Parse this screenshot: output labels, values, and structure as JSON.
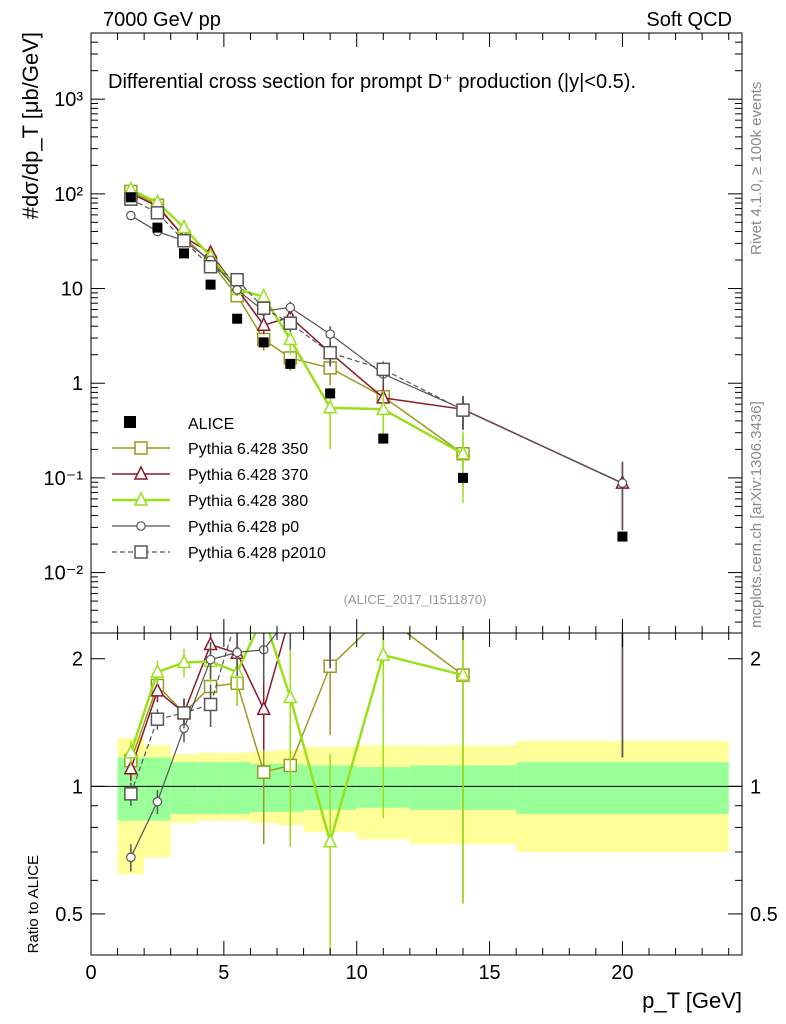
{
  "header": {
    "energy_label": "7000 GeV pp",
    "process_label": "Soft QCD"
  },
  "sidebar": {
    "rivet_label": "Rivet 4.1.0, ≥ 100k events",
    "site_label": "mcplots.cern.ch [arXiv:1306.3436]"
  },
  "colors": {
    "alice": "#000000",
    "p350": "#999a22",
    "p370": "#8b1a2a",
    "p380": "#99e01a",
    "p0": "#555555",
    "p2010": "#555555",
    "band_inner": "#99ff99",
    "band_outer": "#ffff99"
  },
  "chart_data": {
    "type": "scatter",
    "title": "Differential cross section for prompt D⁺ production (|y|<0.5).",
    "analysis_tag": "(ALICE_2017_I1511870)",
    "ylabel_top": "#dσ/dp_T [μb/GeV]",
    "ylabel_ratio": "Ratio to ALICE",
    "xlabel": "p_T [GeV]",
    "xlim": [
      0,
      24.5
    ],
    "ylim_top": [
      0.0023,
      5000
    ],
    "ylim_ratio": [
      0.4,
      2.3
    ],
    "x_ticks": [
      "0",
      "5",
      "10",
      "15",
      "20"
    ],
    "y_ticks_top": [
      "10⁻²",
      "10⁻¹",
      "1",
      "10",
      "10²",
      "10³"
    ],
    "y_ticks_ratio": [
      "0.5",
      "1",
      "2"
    ],
    "legend": [
      "ALICE",
      "Pythia 6.428 350",
      "Pythia 6.428 370",
      "Pythia 6.428 380",
      "Pythia 6.428 p0",
      "Pythia 6.428 p2010"
    ],
    "data": {
      "name": "ALICE",
      "x": [
        1.5,
        2.5,
        3.5,
        4.5,
        5.5,
        6.5,
        7.5,
        9.0,
        11.0,
        14.0,
        20.0
      ],
      "bins": [
        [
          1,
          2
        ],
        [
          2,
          3
        ],
        [
          3,
          4
        ],
        [
          4,
          5
        ],
        [
          5,
          6
        ],
        [
          6,
          7
        ],
        [
          7,
          8
        ],
        [
          8,
          10
        ],
        [
          10,
          12
        ],
        [
          12,
          16
        ],
        [
          16,
          24
        ]
      ],
      "values": [
        92,
        44,
        23.5,
        11,
        4.8,
        2.7,
        1.6,
        0.78,
        0.26,
        0.1,
        0.024
      ],
      "band_inner_frac": [
        0.17,
        0.17,
        0.14,
        0.14,
        0.14,
        0.13,
        0.13,
        0.12,
        0.11,
        0.12,
        0.14
      ],
      "band_outer_lo": [
        0.38,
        0.32,
        0.18,
        0.17,
        0.17,
        0.18,
        0.19,
        0.22,
        0.25,
        0.27,
        0.3
      ],
      "band_outer_hi": [
        0.3,
        0.25,
        0.19,
        0.2,
        0.2,
        0.21,
        0.22,
        0.24,
        0.25,
        0.25,
        0.28
      ]
    },
    "series": [
      {
        "name": "Pythia 6.428 350",
        "marker": "square",
        "x": [
          1.5,
          2.5,
          3.5,
          4.5,
          5.5,
          6.5,
          7.5,
          9.0,
          11.0,
          14.0
        ],
        "values": [
          106,
          76,
          35,
          19,
          8.4,
          2.9,
          1.85,
          1.45,
          0.72,
          0.18
        ],
        "errors": [
          8,
          5,
          3,
          2,
          1.2,
          0.7,
          0.5,
          0.5,
          0.3,
          0.1
        ]
      },
      {
        "name": "Pythia 6.428 370",
        "marker": "triangle",
        "x": [
          1.5,
          2.5,
          3.5,
          4.5,
          5.5,
          6.5,
          7.5,
          9.0,
          11.0,
          14.0,
          20.0
        ],
        "values": [
          101,
          74,
          35,
          23.8,
          9.9,
          4.1,
          5.0,
          2.1,
          0.7,
          0.53,
          0.088
        ],
        "errors": [
          8,
          5,
          3,
          2.4,
          1.2,
          0.8,
          1,
          0.6,
          0.4,
          0.2,
          0.06
        ]
      },
      {
        "name": "Pythia 6.428 380",
        "marker": "triangle",
        "x": [
          1.5,
          2.5,
          3.5,
          4.5,
          5.5,
          6.5,
          7.5,
          9.0,
          11.0,
          14.0
        ],
        "values": [
          111,
          81,
          44,
          21.8,
          9.8,
          8.2,
          2.9,
          0.55,
          0.53,
          0.18
        ],
        "errors": [
          8,
          6,
          4,
          2.5,
          1.5,
          1.4,
          0.9,
          0.35,
          0.3,
          0.13
        ]
      },
      {
        "name": "Pythia 6.428 p0",
        "marker": "circle",
        "x": [
          1.5,
          2.5,
          3.5,
          4.5,
          5.5,
          6.5,
          7.5,
          9.0,
          11.0,
          14.0,
          20.0
        ],
        "values": [
          59,
          40,
          32,
          19.9,
          9.7,
          5.8,
          6.3,
          3.3,
          1.25,
          0.53,
          0.088
        ],
        "errors": [
          4,
          3,
          2.5,
          2,
          1.2,
          0.9,
          1,
          0.7,
          0.3,
          0.2,
          0.06
        ]
      },
      {
        "name": "Pythia 6.428 p2010",
        "marker": "square",
        "dashed": true,
        "x": [
          1.5,
          2.5,
          3.5,
          4.5,
          5.5,
          6.5,
          7.5,
          9.0,
          11.0,
          14.0
        ],
        "values": [
          88,
          63,
          32,
          17,
          12.4,
          6.2,
          4.3,
          2.1,
          1.4,
          0.52
        ],
        "errors": [
          7,
          5,
          3,
          2,
          1.5,
          1,
          0.8,
          0.5,
          0.3,
          0.2
        ]
      }
    ],
    "ratio_series": [
      {
        "name": "Pythia 6.428 350",
        "values": [
          1.15,
          1.73,
          1.49,
          1.72,
          1.75,
          1.08,
          1.12,
          1.92,
          3.1,
          1.83
        ],
        "errors": [
          0.08,
          0.1,
          0.12,
          0.18,
          0.2,
          0.35,
          0.4,
          0.6,
          1.0,
          1.3
        ]
      },
      {
        "name": "Pythia 6.428 370",
        "values": [
          1.1,
          1.68,
          1.49,
          2.16,
          2.06,
          1.52,
          3.1,
          2.7,
          2.7,
          5.3,
          3.67
        ],
        "errors": [
          0.07,
          0.1,
          0.12,
          0.2,
          0.25,
          0.3,
          0.6,
          0.8,
          1.2,
          2.0,
          2.5
        ]
      },
      {
        "name": "Pythia 6.428 380",
        "values": [
          1.2,
          1.86,
          1.96,
          1.97,
          1.86,
          3.0,
          1.62,
          0.74,
          2.04,
          1.83
        ],
        "errors": [
          0.08,
          0.12,
          0.15,
          0.22,
          0.3,
          0.5,
          0.9,
          0.45,
          1.2,
          1.3
        ]
      },
      {
        "name": "Pythia 6.428 p0",
        "values": [
          0.68,
          0.92,
          1.37,
          1.99,
          2.07,
          2.1,
          4.0,
          4.3,
          4.8,
          5.3,
          3.67
        ],
        "errors": [
          0.05,
          0.06,
          0.1,
          0.2,
          0.25,
          0.35,
          0.8,
          0.9,
          1.2,
          2.0,
          2.5
        ]
      },
      {
        "name": "Pythia 6.428 p2010",
        "values": [
          0.96,
          1.44,
          1.49,
          1.56,
          2.56,
          2.3,
          2.7,
          2.7,
          5.4,
          5.2
        ],
        "errors": [
          0.06,
          0.08,
          0.12,
          0.18,
          0.3,
          0.4,
          0.6,
          0.8,
          1.3,
          2.0
        ]
      }
    ]
  }
}
